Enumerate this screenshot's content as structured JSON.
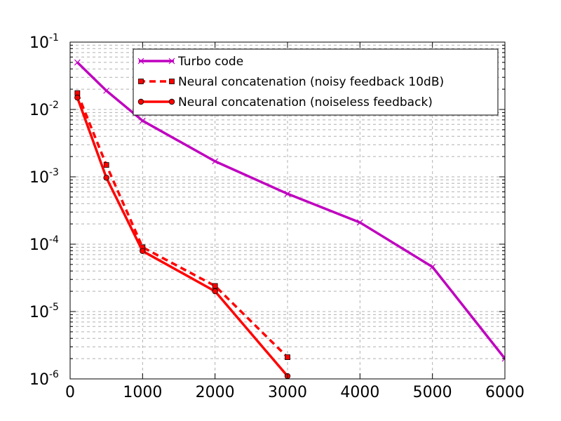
{
  "chart_data": {
    "type": "line",
    "title": "",
    "xlabel": "",
    "ylabel": "",
    "xlim": [
      0,
      6000
    ],
    "ylim_exponents": [
      -6,
      -1
    ],
    "y_scale": "log",
    "grid": true,
    "legend_position": "top-right",
    "x_ticks": [
      {
        "value": 0,
        "label": "0"
      },
      {
        "value": 1000,
        "label": "1000"
      },
      {
        "value": 2000,
        "label": "2000"
      },
      {
        "value": 3000,
        "label": "3000"
      },
      {
        "value": 4000,
        "label": "4000"
      },
      {
        "value": 5000,
        "label": "5000"
      },
      {
        "value": 6000,
        "label": "6000"
      }
    ],
    "y_ticks": [
      {
        "exponent": -1,
        "base": "10",
        "power": "-1"
      },
      {
        "exponent": -2,
        "base": "10",
        "power": "-2"
      },
      {
        "exponent": -3,
        "base": "10",
        "power": "-3"
      },
      {
        "exponent": -4,
        "base": "10",
        "power": "-4"
      },
      {
        "exponent": -5,
        "base": "10",
        "power": "-5"
      },
      {
        "exponent": -6,
        "base": "10",
        "power": "-6"
      }
    ],
    "series": [
      {
        "name": "Turbo code",
        "color": "#bf00bf",
        "dash": "solid",
        "marker": "x",
        "x": [
          100,
          500,
          1000,
          2000,
          3000,
          4000,
          5000,
          6000
        ],
        "y": [
          0.05,
          0.019,
          0.0068,
          0.0017,
          0.00056,
          0.00021,
          4.6e-05,
          2e-06
        ]
      },
      {
        "name": "Neural concatenation (noisy feedback 10dB)",
        "color": "#ff0000",
        "dash": "dashed",
        "marker": "square",
        "x": [
          100,
          500,
          1000,
          2000,
          3000
        ],
        "y": [
          0.0175,
          0.0015,
          9e-05,
          2.4e-05,
          2.1e-06
        ]
      },
      {
        "name": "Neural concatenation (noiseless feedback)",
        "color": "#ff0000",
        "dash": "solid",
        "marker": "circle",
        "x": [
          100,
          500,
          1000,
          2000,
          3000
        ],
        "y": [
          0.015,
          0.00097,
          7.9e-05,
          2e-05,
          1.1e-06
        ]
      }
    ]
  }
}
